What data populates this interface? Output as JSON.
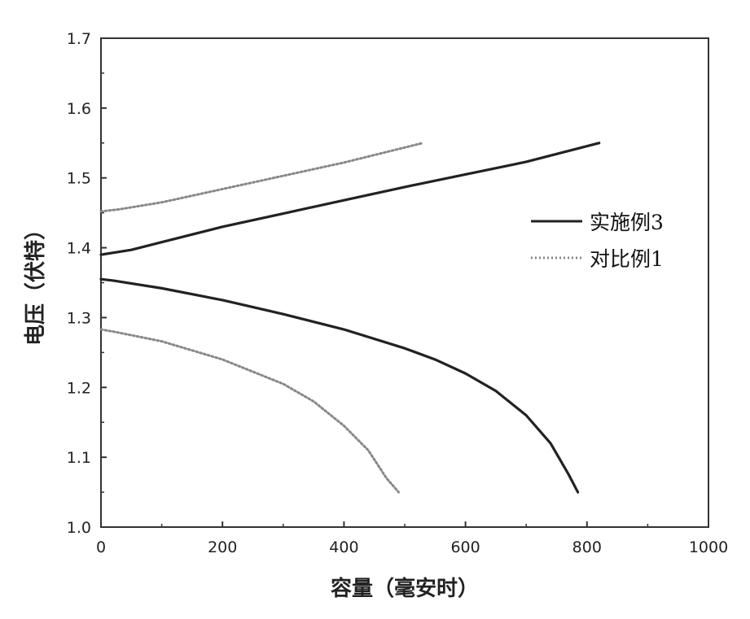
{
  "chart_data": {
    "type": "line",
    "title": "",
    "xlabel": "容量（毫安时）",
    "ylabel": "电压（伏特）",
    "xlim": [
      0,
      1000
    ],
    "ylim": [
      1.0,
      1.7
    ],
    "x_ticks": [
      "0",
      "200",
      "400",
      "600",
      "800",
      "1000"
    ],
    "y_ticks": [
      "1.0",
      "1.1",
      "1.2",
      "1.3",
      "1.4",
      "1.5",
      "1.6",
      "1.7"
    ],
    "grid": false,
    "legend_position": "right",
    "series": [
      {
        "name": "实施例3",
        "style": "solid",
        "color": "#222222",
        "curves": [
          {
            "x": [
              0,
              50,
              100,
              200,
              300,
              400,
              500,
              600,
              700,
              820
            ],
            "y": [
              1.39,
              1.397,
              1.408,
              1.43,
              1.449,
              1.468,
              1.487,
              1.505,
              1.523,
              1.55
            ]
          },
          {
            "x": [
              0,
              20,
              100,
              200,
              300,
              400,
              500,
              550,
              600,
              650,
              700,
              740,
              770,
              785
            ],
            "y": [
              1.355,
              1.353,
              1.342,
              1.325,
              1.305,
              1.283,
              1.256,
              1.24,
              1.22,
              1.195,
              1.16,
              1.12,
              1.075,
              1.05
            ]
          }
        ]
      },
      {
        "name": "对比例1",
        "style": "dotted",
        "color": "#888888",
        "curves": [
          {
            "x": [
              0,
              30,
              100,
              200,
              300,
              400,
              530
            ],
            "y": [
              1.452,
              1.455,
              1.465,
              1.484,
              1.503,
              1.522,
              1.55
            ]
          },
          {
            "x": [
              0,
              20,
              100,
              200,
              300,
              350,
              400,
              440,
              470,
              490
            ],
            "y": [
              1.283,
              1.28,
              1.266,
              1.24,
              1.205,
              1.18,
              1.145,
              1.11,
              1.07,
              1.05
            ]
          }
        ]
      }
    ]
  }
}
